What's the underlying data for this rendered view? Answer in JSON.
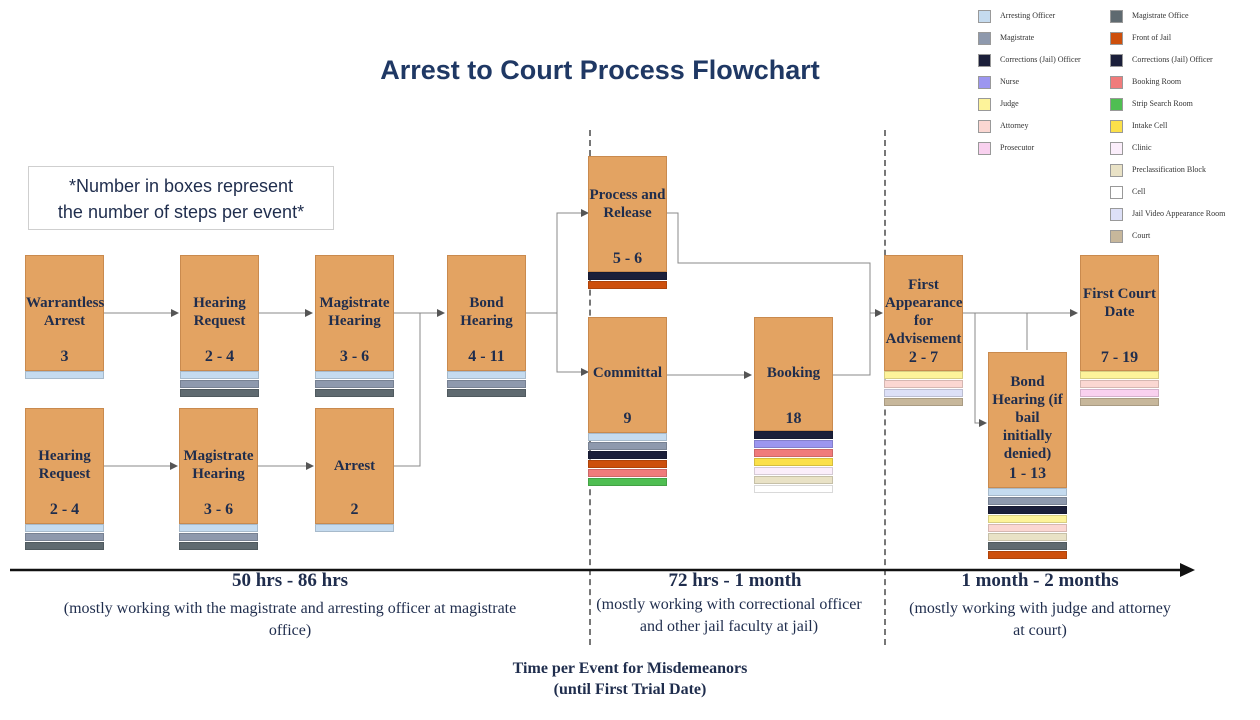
{
  "title": "Arrest to Court Process Flowchart",
  "note": [
    "*Number in boxes represent",
    "the number of steps per event*"
  ],
  "legend": [
    {
      "label": "Arresting Officer",
      "color": "#c5dbef"
    },
    {
      "label": "Magistrate",
      "color": "#8e99ad"
    },
    {
      "label": "Corrections (Jail) Officer",
      "color": "#1b1f3a"
    },
    {
      "label": "Nurse",
      "color": "#9c96f0"
    },
    {
      "label": "Judge",
      "color": "#fdf39a"
    },
    {
      "label": "Attorney",
      "color": "#fbd7d2"
    },
    {
      "label": "Prosecutor",
      "color": "#f9d1ef"
    },
    {
      "label": "Magistrate Office",
      "color": "#5f6a70"
    },
    {
      "label": "Front of Jail",
      "color": "#cd4f0c"
    },
    {
      "label": "Corrections (Jail) Officer",
      "color": "#1b1f3a"
    },
    {
      "label": "Booking Room",
      "color": "#f07b7b"
    },
    {
      "label": "Strip Search Room",
      "color": "#4fbe52"
    },
    {
      "label": "Intake Cell",
      "color": "#fbe04a"
    },
    {
      "label": "Clinic",
      "color": "#fbeefb"
    },
    {
      "label": "Preclassification Block",
      "color": "#e9e2c6"
    },
    {
      "label": "Cell",
      "color": "#ffffff"
    },
    {
      "label": "Jail Video Appearance Room",
      "color": "#dde0f7"
    },
    {
      "label": "Court",
      "color": "#c7b79b"
    }
  ],
  "boxes": {
    "warrantless_arrest": {
      "label": "Warrantless Arrest",
      "steps": "3"
    },
    "hearing_request_1": {
      "label": "Hearing Request",
      "steps": "2 - 4"
    },
    "magistrate_hearing_1": {
      "label": "Magistrate Hearing",
      "steps": "3 - 6"
    },
    "bond_hearing_1": {
      "label": "Bond Hearing",
      "steps": "4 - 11"
    },
    "hearing_request_2": {
      "label": "Hearing Request",
      "steps": "2 - 4"
    },
    "magistrate_hearing_2": {
      "label": "Magistrate Hearing",
      "steps": "3 - 6"
    },
    "arrest": {
      "label": "Arrest",
      "steps": "2"
    },
    "process_release": {
      "label": "Process and Release",
      "steps": "5 - 6"
    },
    "committal": {
      "label": "Committal",
      "steps": "9"
    },
    "booking": {
      "label": "Booking",
      "steps": "18"
    },
    "first_appearance": {
      "label": "First Appearance for Advisement",
      "steps": "2 - 7"
    },
    "bond_hearing_2": {
      "label": "Bond Hearing (if bail initially denied)",
      "steps": "1 - 13"
    },
    "first_court_date": {
      "label": "First Court Date",
      "steps": "7 - 19"
    }
  },
  "phases": [
    {
      "label": "50 hrs - 86 hrs",
      "desc": "(mostly working with the magistrate and arresting  officer at magistrate office)"
    },
    {
      "label": "72 hrs - 1 month",
      "desc": "(mostly working with correctional officer and other jail faculty at jail)"
    },
    {
      "label": "1 month - 2 months",
      "desc": "(mostly working with judge and attorney at court)"
    }
  ],
  "footer": [
    "Time per Event for Misdemeanors",
    "(until First Trial Date)"
  ]
}
